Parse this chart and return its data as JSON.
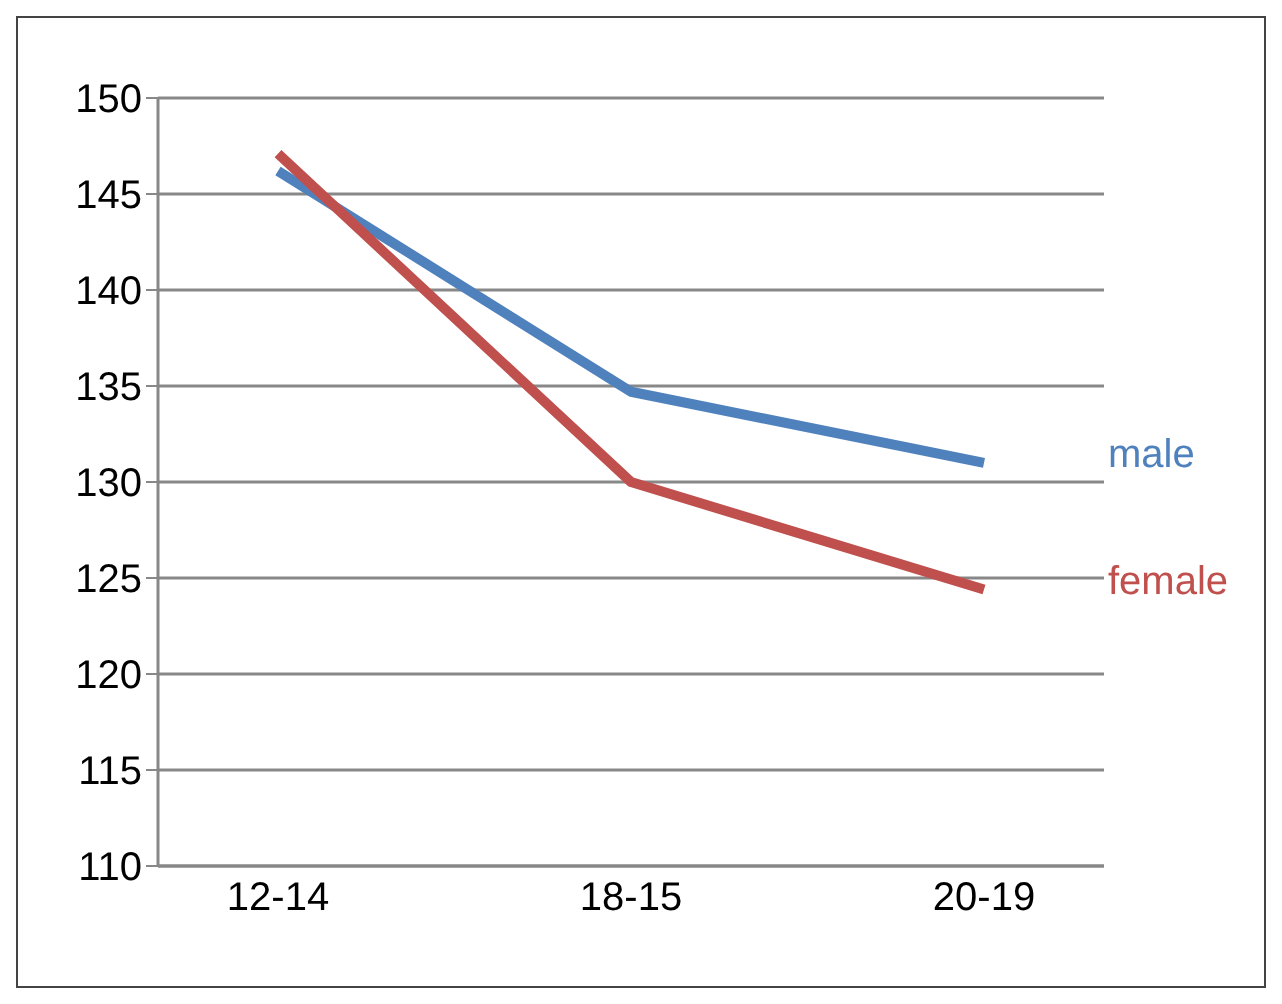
{
  "chart_data": {
    "type": "line",
    "categories": [
      "12-14",
      "18-15",
      "20-19"
    ],
    "series": [
      {
        "name": "male",
        "color": "#4f81bd",
        "values": [
          146.2,
          134.7,
          131.0
        ]
      },
      {
        "name": "female",
        "color": "#c0504d",
        "values": [
          147.1,
          130.0,
          124.4
        ]
      }
    ],
    "ylim": [
      110,
      150
    ],
    "yticks": [
      110,
      115,
      120,
      125,
      130,
      135,
      140,
      145,
      150
    ],
    "grid": "y",
    "marker": "none",
    "line_style": "solid"
  }
}
